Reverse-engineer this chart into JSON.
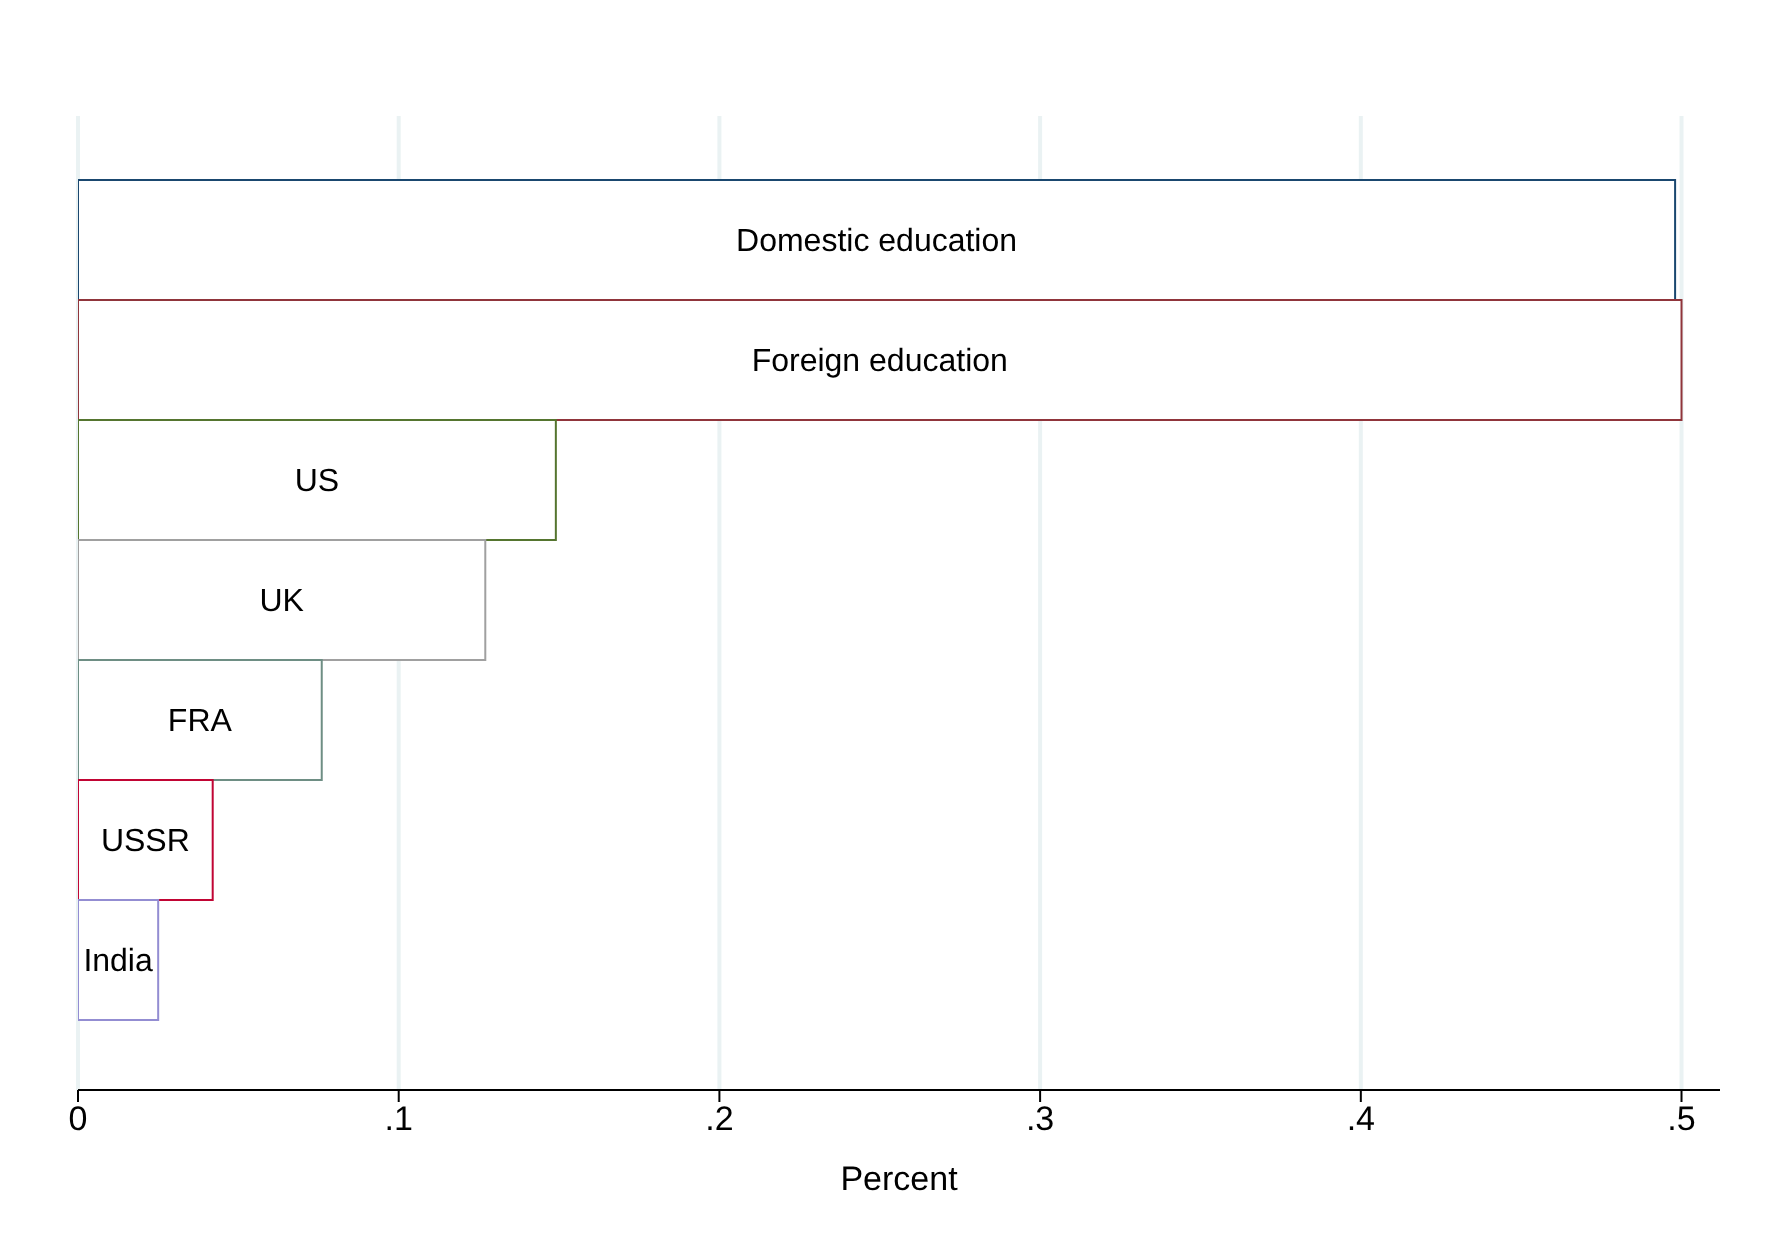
{
  "chart_data": {
    "type": "bar",
    "orientation": "horizontal",
    "xlabel": "Percent",
    "categories": [
      "Domestic education",
      "Foreign education",
      "US",
      "UK",
      "FRA",
      "USSR",
      "India"
    ],
    "values": [
      0.498,
      0.5,
      0.149,
      0.127,
      0.076,
      0.042,
      0.025
    ],
    "colors": [
      "#1a476f",
      "#90353b",
      "#55752f",
      "#a0a0a0",
      "#6e8e84",
      "#c10534",
      "#938dd2"
    ],
    "xlim": [
      0,
      0.512
    ],
    "xticks": [
      0,
      {
        "value": 0.1,
        "label": ".1"
      },
      {
        "value": 0.2,
        "label": ".2"
      },
      {
        "value": 0.3,
        "label": ".3"
      },
      {
        "value": 0.4,
        "label": ".4"
      },
      {
        "value": 0.5,
        "label": ".5"
      }
    ],
    "grid": "x",
    "legend": false
  }
}
